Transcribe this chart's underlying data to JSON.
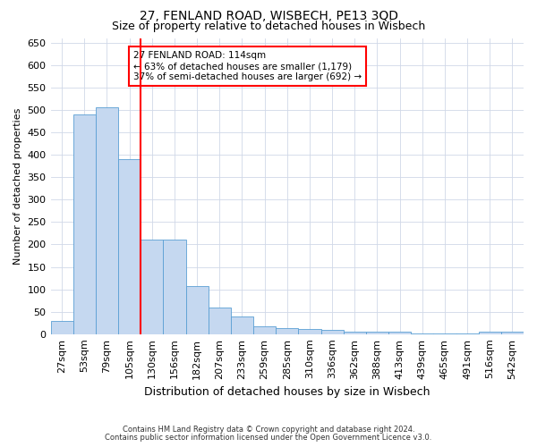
{
  "title": "27, FENLAND ROAD, WISBECH, PE13 3QD",
  "subtitle": "Size of property relative to detached houses in Wisbech",
  "xlabel": "Distribution of detached houses by size in Wisbech",
  "ylabel": "Number of detached properties",
  "footer_line1": "Contains HM Land Registry data © Crown copyright and database right 2024.",
  "footer_line2": "Contains public sector information licensed under the Open Government Licence v3.0.",
  "categories": [
    "27sqm",
    "53sqm",
    "79sqm",
    "105sqm",
    "130sqm",
    "156sqm",
    "182sqm",
    "207sqm",
    "233sqm",
    "259sqm",
    "285sqm",
    "310sqm",
    "336sqm",
    "362sqm",
    "388sqm",
    "413sqm",
    "439sqm",
    "465sqm",
    "491sqm",
    "516sqm",
    "542sqm"
  ],
  "values": [
    30,
    490,
    505,
    390,
    210,
    210,
    107,
    60,
    40,
    18,
    14,
    12,
    10,
    5,
    5,
    5,
    2,
    2,
    2,
    5,
    5
  ],
  "bar_color": "#c5d8f0",
  "bar_edge_color": "#5a9fd4",
  "vline_color": "red",
  "vline_pos": 3.5,
  "ylim": [
    0,
    660
  ],
  "yticks": [
    0,
    50,
    100,
    150,
    200,
    250,
    300,
    350,
    400,
    450,
    500,
    550,
    600,
    650
  ],
  "annotation_text": "27 FENLAND ROAD: 114sqm\n← 63% of detached houses are smaller (1,179)\n37% of semi-detached houses are larger (692) →",
  "annotation_box_color": "white",
  "annotation_box_edge": "red",
  "bg_color": "white",
  "grid_color": "#d0d8e8",
  "title_fontsize": 10,
  "subtitle_fontsize": 9,
  "ylabel_fontsize": 8,
  "xlabel_fontsize": 9,
  "tick_fontsize": 8,
  "annot_fontsize": 7.5,
  "footer_fontsize": 6
}
